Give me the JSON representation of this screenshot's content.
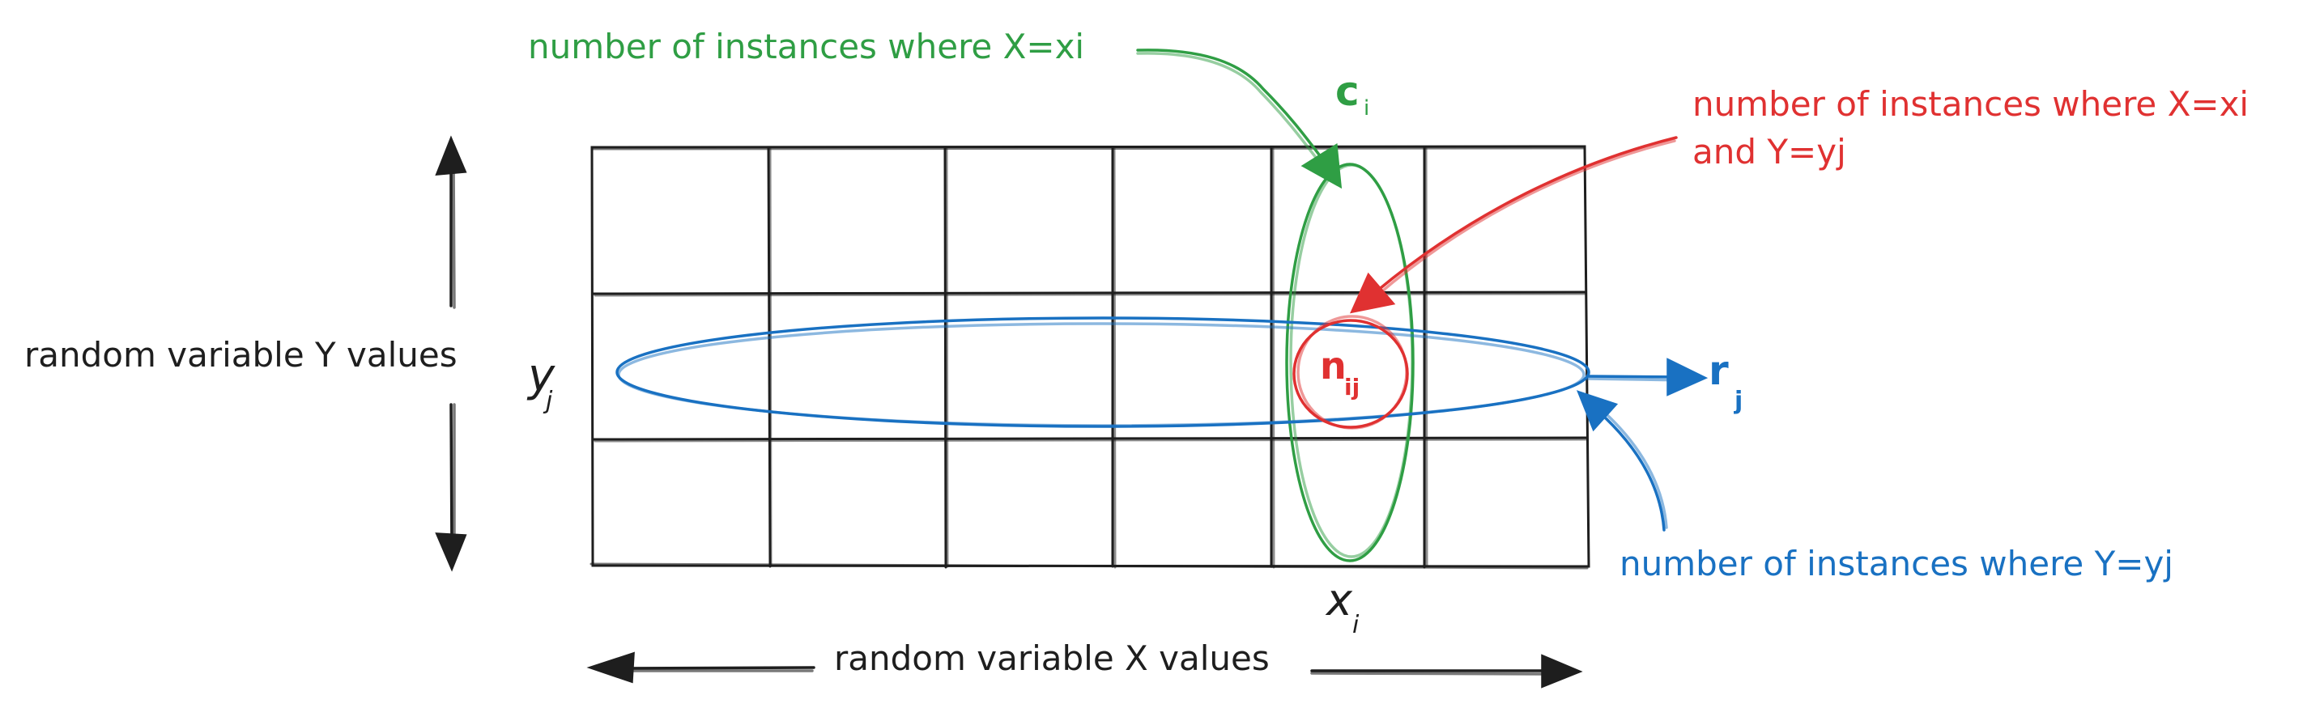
{
  "labels": {
    "x_axis": "random variable X values",
    "y_axis": "random variable Y values",
    "x_i": "x",
    "x_i_sub": "i",
    "y_j": "y",
    "y_j_sub": "j",
    "c_i": "c",
    "c_i_sub": "i",
    "r_j": "r",
    "r_j_sub": "j",
    "n_ij": "n",
    "n_ij_sub": "ij"
  },
  "annotations": {
    "green": "number of instances where X=xi",
    "red_line1": "number of instances where X=xi",
    "red_line2": "and Y=yj",
    "blue": "number of instances where Y=yj"
  },
  "colors": {
    "ink": "#1e1e1e",
    "green": "#2f9e44",
    "red": "#e03131",
    "blue": "#1971c2"
  }
}
